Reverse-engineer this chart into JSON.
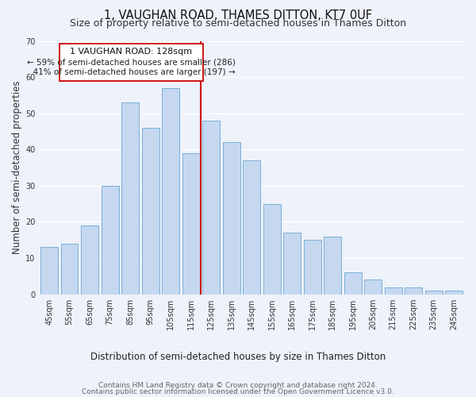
{
  "title": "1, VAUGHAN ROAD, THAMES DITTON, KT7 0UF",
  "subtitle": "Size of property relative to semi-detached houses in Thames Ditton",
  "xlabel": "Distribution of semi-detached houses by size in Thames Ditton",
  "ylabel": "Number of semi-detached properties",
  "footer_line1": "Contains HM Land Registry data © Crown copyright and database right 2024.",
  "footer_line2": "Contains public sector information licensed under the Open Government Licence v3.0.",
  "categories": [
    "45sqm",
    "55sqm",
    "65sqm",
    "75sqm",
    "85sqm",
    "95sqm",
    "105sqm",
    "115sqm",
    "125sqm",
    "135sqm",
    "145sqm",
    "155sqm",
    "165sqm",
    "175sqm",
    "185sqm",
    "195sqm",
    "205sqm",
    "215sqm",
    "225sqm",
    "235sqm",
    "245sqm"
  ],
  "values": [
    13,
    14,
    19,
    30,
    53,
    46,
    57,
    39,
    48,
    42,
    37,
    25,
    17,
    15,
    16,
    6,
    4,
    2,
    2,
    1,
    1
  ],
  "bar_color": "#c5d8f0",
  "bar_edge_color": "#7aaed6",
  "highlight_index": 8,
  "highlight_line_color": "#cc0000",
  "highlight_value": 128,
  "highlight_label": "1 VAUGHAN ROAD: 128sqm",
  "smaller_pct": 59,
  "smaller_count": 286,
  "larger_pct": 41,
  "larger_count": 197,
  "box_edge_color": "#cc0000",
  "ylim": [
    0,
    70
  ],
  "yticks": [
    0,
    10,
    20,
    30,
    40,
    50,
    60,
    70
  ],
  "background_color": "#eef2fa",
  "grid_color": "#ffffff",
  "title_fontsize": 10.5,
  "subtitle_fontsize": 9,
  "axis_label_fontsize": 8.5,
  "tick_fontsize": 7,
  "annotation_fontsize": 8,
  "footer_fontsize": 6.5
}
